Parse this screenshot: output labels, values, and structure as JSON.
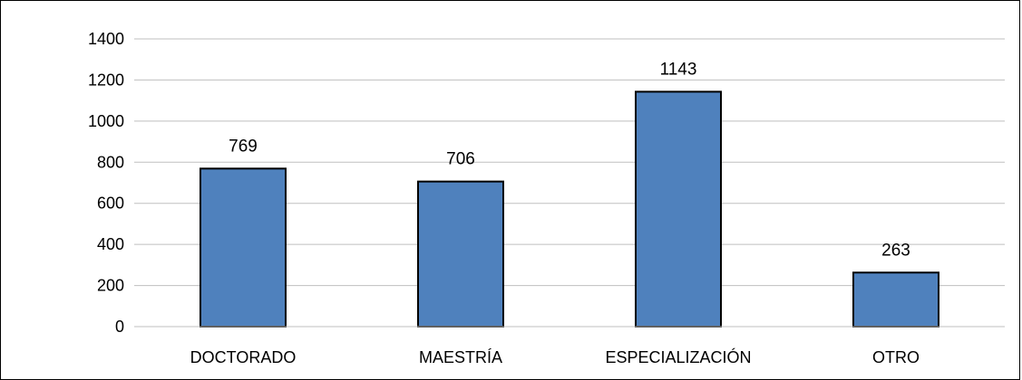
{
  "chart_data": {
    "type": "bar",
    "categories": [
      "DOCTORADO",
      "MAESTRÍA",
      "ESPECIALIZACIÓN",
      "OTRO"
    ],
    "values": [
      769,
      706,
      1143,
      263
    ],
    "data_labels": [
      "769",
      "706",
      "1143",
      "263"
    ],
    "yticks": [
      "0",
      "200",
      "400",
      "600",
      "800",
      "1000",
      "1200",
      "1400"
    ],
    "ylim": [
      0,
      1400
    ],
    "grid": true,
    "bar_color": "#4F81BD",
    "bar_edge_color": "#000000",
    "grid_color": "#BFBFBF"
  }
}
